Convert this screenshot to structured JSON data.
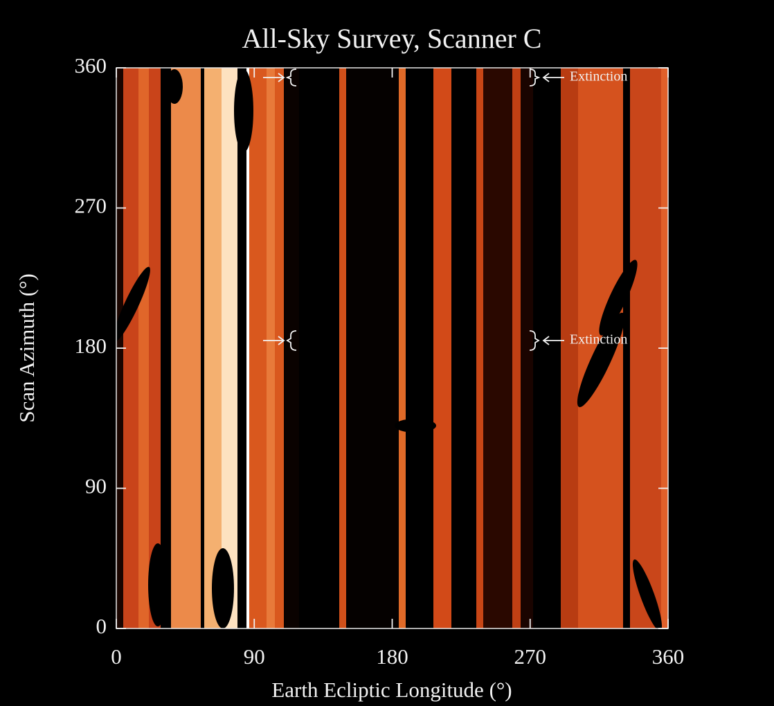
{
  "chart_data": {
    "type": "heatmap",
    "title": "All-Sky Survey, Scanner C",
    "x_label": "Earth Ecliptic Longitude (°)",
    "y_label": "Scan Azimuth (°)",
    "xlim": [
      0,
      360
    ],
    "ylim": [
      0,
      360
    ],
    "xticks": [
      0,
      90,
      180,
      270,
      360
    ],
    "yticks": [
      0,
      90,
      180,
      270,
      360
    ],
    "annotations": [
      "Extinction",
      "Extinction"
    ]
  }
}
